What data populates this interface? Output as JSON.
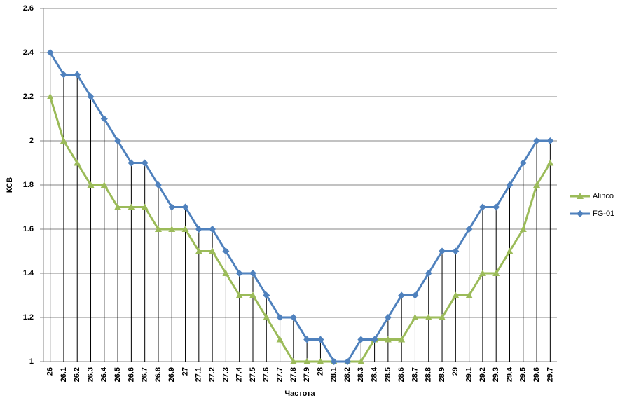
{
  "chart_data": {
    "type": "line",
    "x_label": "Частота",
    "y_label": "КСВ",
    "categories": [
      "26",
      "26.1",
      "26.2",
      "26.3",
      "26.4",
      "26.5",
      "26.6",
      "26.7",
      "26.8",
      "26.9",
      "27",
      "27.1",
      "27.2",
      "27.3",
      "27.4",
      "27.5",
      "27.6",
      "27.7",
      "27.8",
      "27.9",
      "28",
      "28.1",
      "28.2",
      "28.3",
      "28.4",
      "28.5",
      "28.6",
      "28.7",
      "28.8",
      "28.9",
      "29",
      "29.1",
      "29.2",
      "29.3",
      "29.4",
      "29.5",
      "29.6",
      "29.7"
    ],
    "series": [
      {
        "name": "Alinco",
        "color": "#9bbb59",
        "marker": "triangle",
        "values": [
          2.2,
          2.0,
          1.9,
          1.8,
          1.8,
          1.7,
          1.7,
          1.7,
          1.6,
          1.6,
          1.6,
          1.5,
          1.5,
          1.4,
          1.3,
          1.3,
          1.2,
          1.1,
          1.0,
          1.0,
          1.0,
          1.0,
          1.0,
          1.0,
          1.1,
          1.1,
          1.1,
          1.2,
          1.2,
          1.2,
          1.3,
          1.3,
          1.4,
          1.4,
          1.5,
          1.6,
          1.8,
          1.9
        ]
      },
      {
        "name": "FG-01",
        "color": "#4f81bd",
        "marker": "diamond",
        "values": [
          2.4,
          2.3,
          2.3,
          2.2,
          2.1,
          2.0,
          1.9,
          1.9,
          1.8,
          1.7,
          1.7,
          1.6,
          1.6,
          1.5,
          1.4,
          1.4,
          1.3,
          1.2,
          1.2,
          1.1,
          1.1,
          1.0,
          1.0,
          1.1,
          1.1,
          1.2,
          1.3,
          1.3,
          1.4,
          1.5,
          1.5,
          1.6,
          1.7,
          1.7,
          1.8,
          1.9,
          2.0,
          2.0
        ]
      }
    ],
    "ylim": [
      1,
      2.6
    ],
    "yticks": [
      1,
      1.2,
      1.4,
      1.6,
      1.8,
      2,
      2.2,
      2.4,
      2.6
    ],
    "grid": true,
    "drop_lines": true,
    "legend": "right"
  }
}
